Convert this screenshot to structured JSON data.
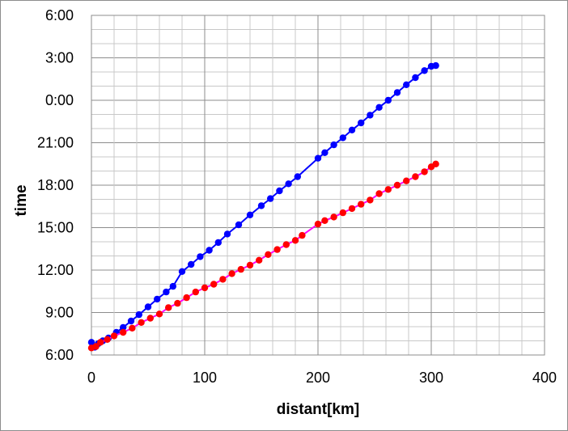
{
  "chart_data": {
    "type": "scatter",
    "title": "",
    "xlabel": "distant[km]",
    "ylabel": "time",
    "xlim": [
      0,
      400
    ],
    "ylim": [
      "6:00",
      "6:00 (+1 day)"
    ],
    "x_ticks": [
      "0",
      "100",
      "200",
      "300",
      "400"
    ],
    "y_ticks": [
      "6:00",
      "9:00",
      "12:00",
      "15:00",
      "18:00",
      "21:00",
      "0:00",
      "3:00",
      "6:00"
    ],
    "y_unit": "hours elapsed from 6:00 (0 = 6:00, 24 = 6:00 next day)",
    "grid": true,
    "legend": "none",
    "series": [
      {
        "color": "#0000ff",
        "line_color": "#0000ff",
        "points": [
          [
            0,
            0.9
          ],
          [
            3,
            0.55
          ],
          [
            6,
            0.8
          ],
          [
            10,
            1.0
          ],
          [
            15,
            1.2
          ],
          [
            22,
            1.6
          ],
          [
            28,
            1.95
          ],
          [
            35,
            2.4
          ],
          [
            42,
            2.85
          ],
          [
            50,
            3.4
          ],
          [
            58,
            3.95
          ],
          [
            66,
            4.45
          ],
          [
            72,
            4.85
          ],
          [
            80,
            5.9
          ],
          [
            88,
            6.4
          ],
          [
            96,
            6.95
          ],
          [
            104,
            7.4
          ],
          [
            112,
            7.95
          ],
          [
            120,
            8.55
          ],
          [
            130,
            9.2
          ],
          [
            140,
            9.9
          ],
          [
            150,
            10.55
          ],
          [
            158,
            11.05
          ],
          [
            166,
            11.6
          ],
          [
            174,
            12.1
          ],
          [
            182,
            12.6
          ],
          [
            200,
            13.9
          ],
          [
            206,
            14.3
          ],
          [
            214,
            14.85
          ],
          [
            222,
            15.35
          ],
          [
            230,
            15.9
          ],
          [
            238,
            16.4
          ],
          [
            246,
            16.95
          ],
          [
            254,
            17.5
          ],
          [
            262,
            18.0
          ],
          [
            270,
            18.55
          ],
          [
            278,
            19.1
          ],
          [
            286,
            19.6
          ],
          [
            294,
            20.1
          ],
          [
            300,
            20.4
          ],
          [
            304,
            20.45
          ]
        ]
      },
      {
        "color": "#ff0000",
        "line_color": "#ff00ff",
        "points": [
          [
            0,
            0.5
          ],
          [
            4,
            0.6
          ],
          [
            8,
            0.9
          ],
          [
            14,
            1.1
          ],
          [
            20,
            1.35
          ],
          [
            28,
            1.6
          ],
          [
            36,
            1.9
          ],
          [
            44,
            2.3
          ],
          [
            52,
            2.6
          ],
          [
            60,
            2.9
          ],
          [
            68,
            3.35
          ],
          [
            76,
            3.65
          ],
          [
            84,
            4.05
          ],
          [
            92,
            4.45
          ],
          [
            100,
            4.75
          ],
          [
            108,
            5.0
          ],
          [
            116,
            5.35
          ],
          [
            124,
            5.75
          ],
          [
            132,
            6.05
          ],
          [
            140,
            6.35
          ],
          [
            148,
            6.7
          ],
          [
            156,
            7.1
          ],
          [
            164,
            7.45
          ],
          [
            172,
            7.8
          ],
          [
            180,
            8.1
          ],
          [
            186,
            8.45
          ],
          [
            200,
            9.25
          ],
          [
            206,
            9.5
          ],
          [
            214,
            9.75
          ],
          [
            222,
            10.05
          ],
          [
            230,
            10.35
          ],
          [
            238,
            10.65
          ],
          [
            246,
            10.95
          ],
          [
            254,
            11.4
          ],
          [
            262,
            11.7
          ],
          [
            270,
            12.0
          ],
          [
            278,
            12.3
          ],
          [
            286,
            12.6
          ],
          [
            294,
            12.95
          ],
          [
            300,
            13.3
          ],
          [
            304,
            13.5
          ]
        ]
      }
    ]
  }
}
